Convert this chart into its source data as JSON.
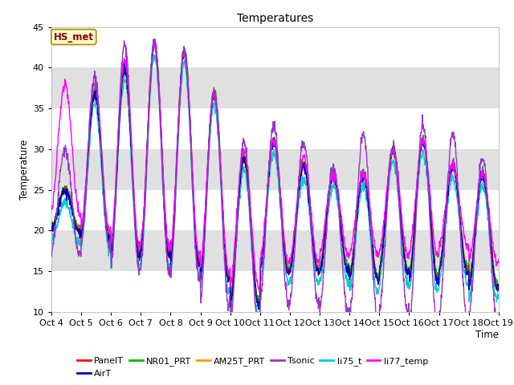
{
  "title": "Temperatures",
  "xlabel": "Time",
  "ylabel": "Temperature",
  "ylim": [
    10,
    45
  ],
  "xlim": [
    0,
    15
  ],
  "series_colors": {
    "PanelT": "#ff0000",
    "AirT": "#0000bb",
    "NR01_PRT": "#00bb00",
    "AM25T_PRT": "#ff9900",
    "Tsonic": "#9933cc",
    "li75_t": "#00cccc",
    "li77_temp": "#ff00ff"
  },
  "xtick_labels": [
    "Oct 4",
    "Oct 5",
    "Oct 6",
    "Oct 7",
    "Oct 8",
    "Oct 9",
    "Oct 10",
    "Oct 11",
    "Oct 12",
    "Oct 13",
    "Oct 14",
    "Oct 15",
    "Oct 16",
    "Oct 17",
    "Oct 18",
    "Oct 19"
  ],
  "xtick_positions": [
    0,
    1,
    2,
    3,
    4,
    5,
    6,
    7,
    8,
    9,
    10,
    11,
    12,
    13,
    14,
    15
  ],
  "band_colors": [
    "#ffffff",
    "#e0e0e0"
  ],
  "annotation_text": "HS_met",
  "annotation_fg": "#880000",
  "annotation_bg": "#ffffcc",
  "annotation_edge": "#aa8800",
  "peak_temps": [
    25,
    37,
    40,
    43,
    42,
    37,
    29,
    31,
    28,
    27,
    27,
    30,
    31,
    28,
    27
  ],
  "trough_temps": [
    20,
    19,
    17,
    17,
    16,
    14,
    11,
    15,
    15,
    15,
    14,
    15,
    14,
    15,
    13
  ],
  "tsonic_peak_extra": [
    5,
    2,
    3,
    0,
    0,
    0,
    2,
    2,
    3,
    1,
    5,
    0,
    2,
    4,
    2
  ],
  "li77_peak_extra": [
    13,
    1,
    1,
    0,
    0,
    0,
    1,
    0,
    1,
    0,
    0,
    0,
    0,
    0,
    0
  ],
  "tsonic_trough_extra": [
    3,
    1,
    2,
    2,
    2,
    3,
    3,
    4,
    4,
    5,
    5,
    5,
    6,
    6,
    4
  ],
  "li77_trough_extra": [
    2,
    1,
    1,
    1,
    1,
    1,
    2,
    1,
    1,
    2,
    3,
    2,
    3,
    3,
    3
  ]
}
